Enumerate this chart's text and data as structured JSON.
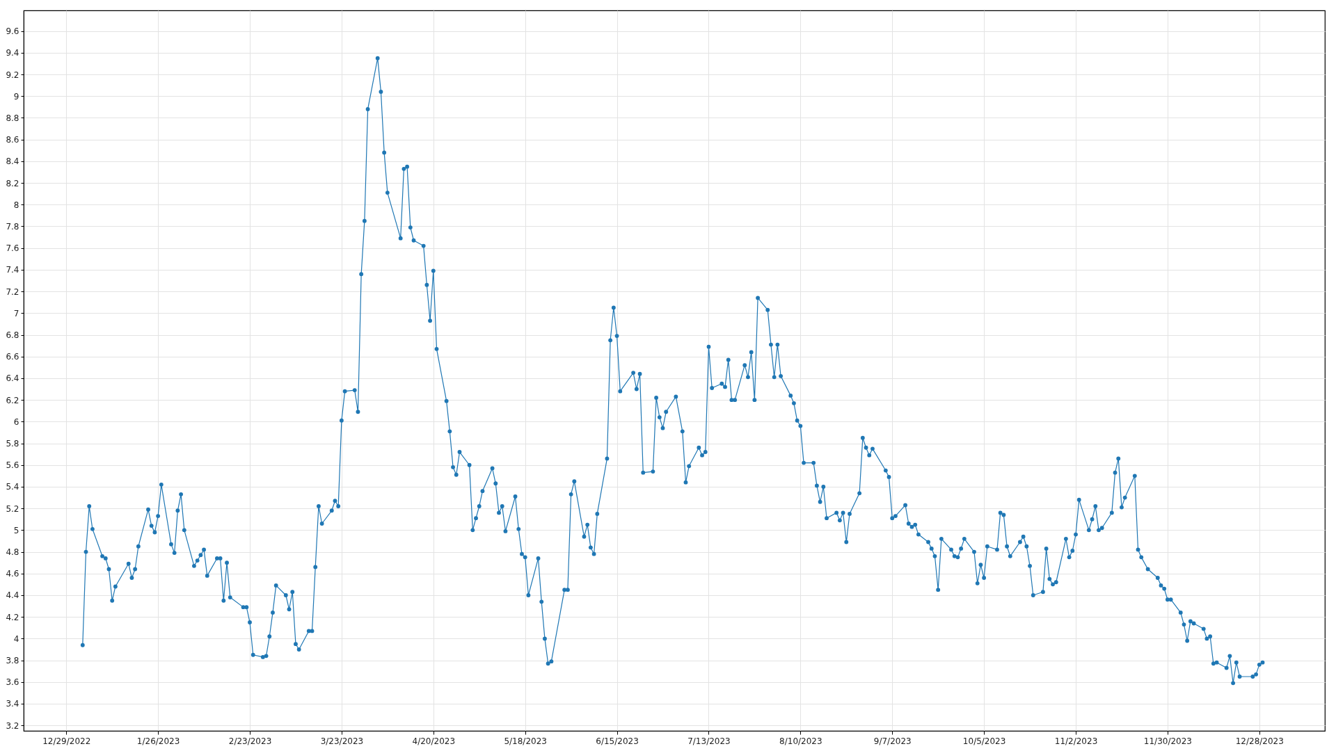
{
  "chart_data": {
    "type": "line",
    "x": [
      "2023-01-03",
      "2023-01-04",
      "2023-01-05",
      "2023-01-06",
      "2023-01-09",
      "2023-01-10",
      "2023-01-11",
      "2023-01-12",
      "2023-01-13",
      "2023-01-17",
      "2023-01-18",
      "2023-01-19",
      "2023-01-20",
      "2023-01-23",
      "2023-01-24",
      "2023-01-25",
      "2023-01-26",
      "2023-01-27",
      "2023-01-30",
      "2023-01-31",
      "2023-02-01",
      "2023-02-02",
      "2023-02-03",
      "2023-02-06",
      "2023-02-07",
      "2023-02-08",
      "2023-02-09",
      "2023-02-10",
      "2023-02-13",
      "2023-02-14",
      "2023-02-15",
      "2023-02-16",
      "2023-02-17",
      "2023-02-21",
      "2023-02-22",
      "2023-02-23",
      "2023-02-24",
      "2023-02-27",
      "2023-02-28",
      "2023-03-01",
      "2023-03-02",
      "2023-03-03",
      "2023-03-06",
      "2023-03-07",
      "2023-03-08",
      "2023-03-09",
      "2023-03-10",
      "2023-03-13",
      "2023-03-14",
      "2023-03-15",
      "2023-03-16",
      "2023-03-17",
      "2023-03-20",
      "2023-03-21",
      "2023-03-22",
      "2023-03-23",
      "2023-03-24",
      "2023-03-27",
      "2023-03-28",
      "2023-03-29",
      "2023-03-30",
      "2023-03-31",
      "2023-04-03",
      "2023-04-04",
      "2023-04-05",
      "2023-04-06",
      "2023-04-10",
      "2023-04-11",
      "2023-04-12",
      "2023-04-13",
      "2023-04-14",
      "2023-04-17",
      "2023-04-18",
      "2023-04-19",
      "2023-04-20",
      "2023-04-21",
      "2023-04-24",
      "2023-04-25",
      "2023-04-26",
      "2023-04-27",
      "2023-04-28",
      "2023-05-01",
      "2023-05-02",
      "2023-05-03",
      "2023-05-04",
      "2023-05-05",
      "2023-05-08",
      "2023-05-09",
      "2023-05-10",
      "2023-05-11",
      "2023-05-12",
      "2023-05-15",
      "2023-05-16",
      "2023-05-17",
      "2023-05-18",
      "2023-05-19",
      "2023-05-22",
      "2023-05-23",
      "2023-05-24",
      "2023-05-25",
      "2023-05-26",
      "2023-05-30",
      "2023-05-31",
      "2023-06-01",
      "2023-06-02",
      "2023-06-05",
      "2023-06-06",
      "2023-06-07",
      "2023-06-08",
      "2023-06-09",
      "2023-06-12",
      "2023-06-13",
      "2023-06-14",
      "2023-06-15",
      "2023-06-16",
      "2023-06-20",
      "2023-06-21",
      "2023-06-22",
      "2023-06-23",
      "2023-06-26",
      "2023-06-27",
      "2023-06-28",
      "2023-06-29",
      "2023-06-30",
      "2023-07-03",
      "2023-07-05",
      "2023-07-06",
      "2023-07-07",
      "2023-07-10",
      "2023-07-11",
      "2023-07-12",
      "2023-07-13",
      "2023-07-14",
      "2023-07-17",
      "2023-07-18",
      "2023-07-19",
      "2023-07-20",
      "2023-07-21",
      "2023-07-24",
      "2023-07-25",
      "2023-07-26",
      "2023-07-27",
      "2023-07-28",
      "2023-07-31",
      "2023-08-01",
      "2023-08-02",
      "2023-08-03",
      "2023-08-04",
      "2023-08-07",
      "2023-08-08",
      "2023-08-09",
      "2023-08-10",
      "2023-08-11",
      "2023-08-14",
      "2023-08-15",
      "2023-08-16",
      "2023-08-17",
      "2023-08-18",
      "2023-08-21",
      "2023-08-22",
      "2023-08-23",
      "2023-08-24",
      "2023-08-25",
      "2023-08-28",
      "2023-08-29",
      "2023-08-30",
      "2023-08-31",
      "2023-09-01",
      "2023-09-05",
      "2023-09-06",
      "2023-09-07",
      "2023-09-08",
      "2023-09-11",
      "2023-09-12",
      "2023-09-13",
      "2023-09-14",
      "2023-09-15",
      "2023-09-18",
      "2023-09-19",
      "2023-09-20",
      "2023-09-21",
      "2023-09-22",
      "2023-09-25",
      "2023-09-26",
      "2023-09-27",
      "2023-09-28",
      "2023-09-29",
      "2023-10-02",
      "2023-10-03",
      "2023-10-04",
      "2023-10-05",
      "2023-10-06",
      "2023-10-09",
      "2023-10-10",
      "2023-10-11",
      "2023-10-12",
      "2023-10-13",
      "2023-10-16",
      "2023-10-17",
      "2023-10-18",
      "2023-10-19",
      "2023-10-20",
      "2023-10-23",
      "2023-10-24",
      "2023-10-25",
      "2023-10-26",
      "2023-10-27",
      "2023-10-30",
      "2023-10-31",
      "2023-11-01",
      "2023-11-02",
      "2023-11-03",
      "2023-11-06",
      "2023-11-07",
      "2023-11-08",
      "2023-11-09",
      "2023-11-10",
      "2023-11-13",
      "2023-11-14",
      "2023-11-15",
      "2023-11-16",
      "2023-11-17",
      "2023-11-20",
      "2023-11-21",
      "2023-11-22",
      "2023-11-24",
      "2023-11-27",
      "2023-11-28",
      "2023-11-29",
      "2023-11-30",
      "2023-12-01",
      "2023-12-04",
      "2023-12-05",
      "2023-12-06",
      "2023-12-07",
      "2023-12-08",
      "2023-12-11",
      "2023-12-12",
      "2023-12-13",
      "2023-12-14",
      "2023-12-15",
      "2023-12-18",
      "2023-12-19",
      "2023-12-20",
      "2023-12-21",
      "2023-12-22",
      "2023-12-26",
      "2023-12-27",
      "2023-12-28",
      "2023-12-29"
    ],
    "series": [
      {
        "color": "#1f77b4",
        "values": [
          3.94,
          4.8,
          5.22,
          5.01,
          4.76,
          4.74,
          4.64,
          4.35,
          4.48,
          4.69,
          4.56,
          4.64,
          4.85,
          5.19,
          5.04,
          4.98,
          5.13,
          5.42,
          4.87,
          4.79,
          5.18,
          5.33,
          5.0,
          4.67,
          4.72,
          4.77,
          4.82,
          4.58,
          4.74,
          4.74,
          4.35,
          4.7,
          4.38,
          4.29,
          4.29,
          4.15,
          3.85,
          3.83,
          3.84,
          4.02,
          4.24,
          4.49,
          4.4,
          4.27,
          4.43,
          3.95,
          3.9,
          4.07,
          4.07,
          4.66,
          5.22,
          5.06,
          5.18,
          5.27,
          5.22,
          6.01,
          6.28,
          6.29,
          6.09,
          7.36,
          7.85,
          8.88,
          9.35,
          9.04,
          8.48,
          8.11,
          7.69,
          8.33,
          8.35,
          7.79,
          7.67,
          7.62,
          7.26,
          6.93,
          7.39,
          6.67,
          6.19,
          5.91,
          5.58,
          5.51,
          5.72,
          5.6,
          5.0,
          5.11,
          5.22,
          5.36,
          5.57,
          5.43,
          5.16,
          5.22,
          4.99,
          5.31,
          5.01,
          4.78,
          4.75,
          4.4,
          4.74,
          4.34,
          4.0,
          3.77,
          3.79,
          4.45,
          4.45,
          5.33,
          5.45,
          4.94,
          5.05,
          4.84,
          4.78,
          5.15,
          5.66,
          6.75,
          7.05,
          6.79,
          6.28,
          6.45,
          6.3,
          6.44,
          5.53,
          5.54,
          6.22,
          6.04,
          5.94,
          6.09,
          6.23,
          5.91,
          5.44,
          5.59,
          5.76,
          5.69,
          5.72,
          6.69,
          6.31,
          6.35,
          6.32,
          6.57,
          6.2,
          6.2,
          6.52,
          6.41,
          6.64,
          6.2,
          7.14,
          7.03,
          6.71,
          6.41,
          6.71,
          6.42,
          6.24,
          6.17,
          6.01,
          5.96,
          5.62,
          5.62,
          5.41,
          5.26,
          5.4,
          5.11,
          5.16,
          5.09,
          5.16,
          4.89,
          5.15,
          5.34,
          5.85,
          5.76,
          5.69,
          5.75,
          5.55,
          5.49,
          5.11,
          5.13,
          5.23,
          5.06,
          5.03,
          5.05,
          4.96,
          4.89,
          4.83,
          4.76,
          4.45,
          4.92,
          4.82,
          4.76,
          4.75,
          4.83,
          4.92,
          4.8,
          4.51,
          4.68,
          4.56,
          4.85,
          4.82,
          5.16,
          5.14,
          4.85,
          4.76,
          4.89,
          4.94,
          4.85,
          4.67,
          4.4,
          4.43,
          4.83,
          4.55,
          4.5,
          4.52,
          4.92,
          4.75,
          4.81,
          4.96,
          5.28,
          5.0,
          5.1,
          5.22,
          5.0,
          5.02,
          5.16,
          5.53,
          5.66,
          5.21,
          5.3,
          5.5,
          4.82,
          4.75,
          4.64,
          4.56,
          4.49,
          4.46,
          4.36,
          4.36,
          4.24,
          4.13,
          3.98,
          4.16,
          4.14,
          4.09,
          4.0,
          4.02,
          3.77,
          3.78,
          3.73,
          3.84,
          3.59,
          3.78,
          3.65,
          3.65,
          3.67,
          3.76,
          3.78
        ]
      }
    ],
    "xlim": [
      "2022-12-16",
      "2024-01-17"
    ],
    "xticks": [
      {
        "value": "2022-12-29",
        "label": "12/29/2022"
      },
      {
        "value": "2023-01-26",
        "label": "1/26/2023"
      },
      {
        "value": "2023-02-23",
        "label": "2/23/2023"
      },
      {
        "value": "2023-03-23",
        "label": "3/23/2023"
      },
      {
        "value": "2023-04-20",
        "label": "4/20/2023"
      },
      {
        "value": "2023-05-18",
        "label": "5/18/2023"
      },
      {
        "value": "2023-06-15",
        "label": "6/15/2023"
      },
      {
        "value": "2023-07-13",
        "label": "7/13/2023"
      },
      {
        "value": "2023-08-10",
        "label": "8/10/2023"
      },
      {
        "value": "2023-09-07",
        "label": "9/7/2023"
      },
      {
        "value": "2023-10-05",
        "label": "10/5/2023"
      },
      {
        "value": "2023-11-02",
        "label": "11/2/2023"
      },
      {
        "value": "2023-11-30",
        "label": "11/30/2023"
      },
      {
        "value": "2023-12-28",
        "label": "12/28/2023"
      }
    ],
    "ylim": [
      3.15,
      9.79
    ],
    "yticks": [
      3.2,
      3.4,
      3.6,
      3.8,
      4,
      4.2,
      4.4,
      4.6,
      4.8,
      5,
      5.2,
      5.4,
      5.6,
      5.8,
      6,
      6.2,
      6.4,
      6.6,
      6.8,
      7,
      7.2,
      7.4,
      7.6,
      7.8,
      8,
      8.2,
      8.4,
      8.6,
      8.8,
      9,
      9.2,
      9.4,
      9.6
    ],
    "grid": true,
    "marker": "circle",
    "line_style": "solid"
  }
}
